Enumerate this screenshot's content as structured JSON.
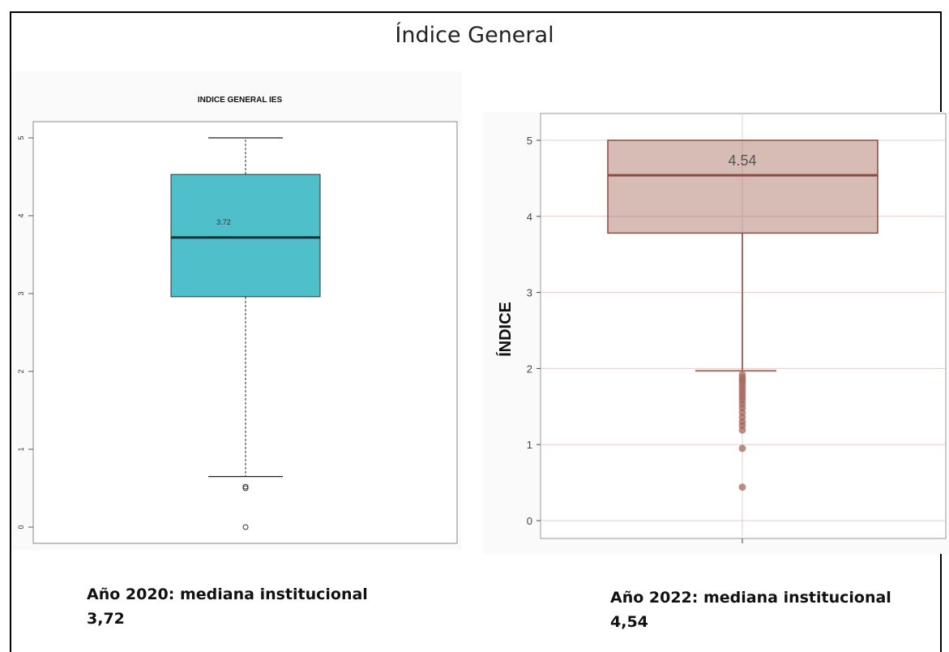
{
  "slide": {
    "title": "Índice General",
    "caption_left": [
      "Año 2020: mediana institucional",
      "3,72"
    ],
    "caption_right": [
      "Año 2022: mediana institucional",
      "4,54"
    ]
  },
  "chart_data": [
    {
      "type": "boxplot",
      "title": "INDICE GENERAL IES",
      "xlabel": "",
      "ylabel": "",
      "ylim": [
        0,
        5
      ],
      "yticks": [
        0,
        1,
        2,
        3,
        4,
        5
      ],
      "grid": false,
      "box_color": "#4fbfca",
      "median_label": "3.72",
      "stats": {
        "whisker_low": 0.65,
        "q1": 2.96,
        "median": 3.72,
        "q3": 4.53,
        "whisker_high": 5.0
      },
      "outliers": [
        0.5,
        0.52,
        0.0
      ]
    },
    {
      "type": "boxplot",
      "title": "",
      "xlabel": "",
      "ylabel": "ÍNDICE",
      "ylim": [
        0,
        5
      ],
      "yticks": [
        0,
        1,
        2,
        3,
        4,
        5
      ],
      "grid": true,
      "box_color": "#a66a5e",
      "median_label": "4.54",
      "stats": {
        "whisker_low": 1.97,
        "q1": 3.78,
        "median": 4.54,
        "q3": 5.0,
        "whisker_high": 5.0
      },
      "outliers": [
        1.92,
        1.88,
        1.85,
        1.82,
        1.78,
        1.74,
        1.7,
        1.66,
        1.62,
        1.58,
        1.53,
        1.48,
        1.42,
        1.36,
        1.3,
        1.25,
        1.19,
        0.95,
        0.44
      ]
    }
  ]
}
